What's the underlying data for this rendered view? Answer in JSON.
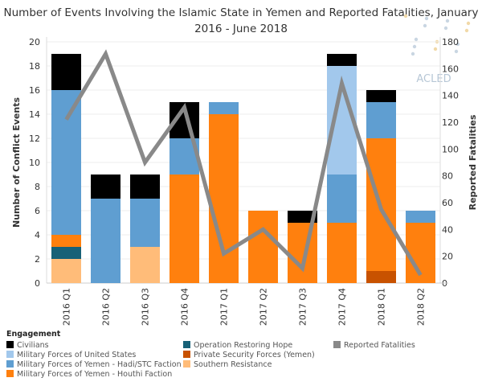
{
  "chart_data": {
    "type": "bar",
    "title": "Number of Events Involving the Islamic State in Yemen and Reported Fatalities, January 2016 - June 2018",
    "title_lines": [
      "Number of Events Involving the Islamic State in Yemen and Reported Fatalities, January",
      "2016 - June 2018"
    ],
    "watermark": "ACLED",
    "stacked": true,
    "categories": [
      "2016 Q1",
      "2016 Q2",
      "2016 Q3",
      "2016 Q4",
      "2017 Q1",
      "2017 Q2",
      "2017 Q3",
      "2017 Q4",
      "2018 Q1",
      "2018 Q2"
    ],
    "ylabel": "Number of Conflict Events",
    "ylim": [
      0,
      20
    ],
    "yticks": [
      0,
      2,
      4,
      6,
      8,
      10,
      12,
      14,
      16,
      18,
      20
    ],
    "y2label": "Reported Fatalities",
    "y2lim": [
      0,
      180
    ],
    "y2ticks": [
      0,
      20,
      40,
      60,
      80,
      100,
      120,
      140,
      160,
      180
    ],
    "grid": true,
    "legend_title": "Engagement",
    "legend_placement": "bottom",
    "series": [
      {
        "name": "Southern Resistance",
        "color": "#ffbc79",
        "values": [
          2,
          0,
          3,
          0,
          0,
          0,
          0,
          0,
          0,
          0
        ]
      },
      {
        "name": "Operation Restoring Hope",
        "color": "#176177",
        "values": [
          1,
          0,
          0,
          0,
          0,
          0,
          0,
          0,
          0,
          0
        ]
      },
      {
        "name": "Private Security Forces (Yemen)",
        "color": "#c85200",
        "values": [
          0,
          0,
          0,
          0,
          0,
          0,
          0,
          0,
          1,
          0
        ]
      },
      {
        "name": "Military Forces of Yemen - Houthi Faction",
        "color": "#ff800e",
        "values": [
          1,
          0,
          0,
          9,
          14,
          6,
          5,
          5,
          11,
          5
        ]
      },
      {
        "name": "Military Forces of Yemen - Hadi/STC Faction",
        "color": "#5f9ed1",
        "values": [
          12,
          7,
          4,
          3,
          1,
          0,
          0,
          4,
          3,
          1
        ]
      },
      {
        "name": "Military Forces of United States",
        "color": "#a2c8ec",
        "values": [
          0,
          0,
          0,
          0,
          0,
          0,
          0,
          9,
          0,
          0
        ]
      },
      {
        "name": "Civilians",
        "color": "#000000",
        "values": [
          3,
          2,
          2,
          3,
          0,
          0,
          1,
          1,
          1,
          0
        ]
      }
    ],
    "line_series": {
      "name": "Reported Fatalities",
      "color": "#898989",
      "axis": "right",
      "values": [
        122,
        171,
        90,
        131,
        22,
        40,
        11,
        149,
        55,
        6
      ]
    },
    "legend_order": [
      "Civilians",
      "Military Forces of United States",
      "Military Forces of Yemen - Hadi/STC Faction",
      "Military Forces of Yemen - Houthi Faction",
      "Operation Restoring Hope",
      "Private Security Forces (Yemen)",
      "Southern Resistance",
      "Reported Fatalities"
    ]
  }
}
